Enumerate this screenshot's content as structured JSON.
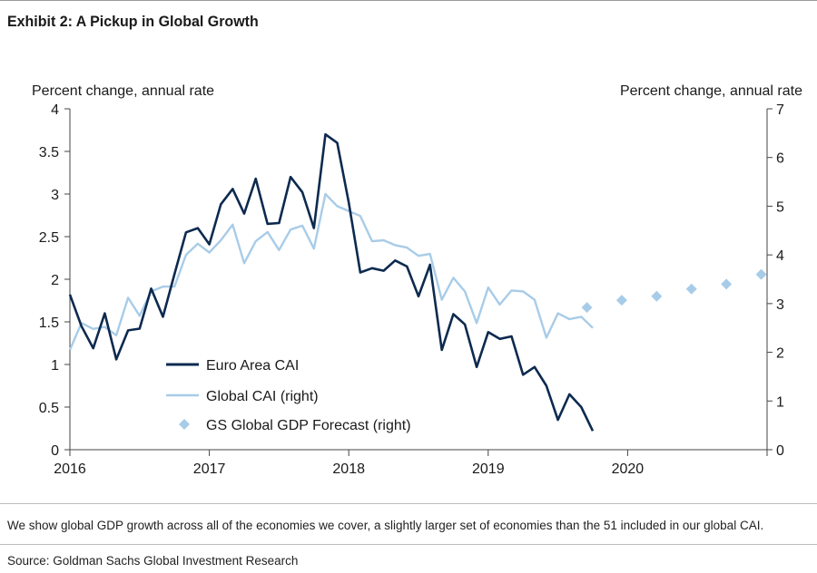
{
  "header": {
    "title": "Exhibit 2: A Pickup in Global Growth"
  },
  "footer": {
    "note": "We show global GDP growth across all of the economies we cover, a slightly larger set of economies than the 51 included in our global CAI.",
    "source": "Source: Goldman Sachs Global Investment Research"
  },
  "chart_data": {
    "type": "line",
    "title": "Exhibit 2: A Pickup in Global Growth",
    "ylabel_left": "Percent change, annual rate",
    "ylabel_right": "Percent change, annual rate",
    "ylim_left": [
      0,
      4
    ],
    "ylim_right": [
      0,
      7
    ],
    "xlim": [
      2016,
      2021
    ],
    "x_ticks": [
      "2016",
      "2017",
      "2018",
      "2019",
      "2020"
    ],
    "y_ticks_left": [
      "0",
      "0.5",
      "1",
      "1.5",
      "2",
      "2.5",
      "3",
      "3.5",
      "4"
    ],
    "y_ticks_right": [
      "0",
      "1",
      "2",
      "3",
      "4",
      "5",
      "6",
      "7"
    ],
    "grid": false,
    "legend_position": "bottom-left",
    "series": [
      {
        "name": "Euro Area CAI",
        "axis": "left",
        "style": "line",
        "color": "#0d2a4f",
        "x": [
          2016.0,
          2016.083,
          2016.167,
          2016.25,
          2016.333,
          2016.417,
          2016.5,
          2016.583,
          2016.667,
          2016.75,
          2016.833,
          2016.917,
          2017.0,
          2017.083,
          2017.167,
          2017.25,
          2017.333,
          2017.417,
          2017.5,
          2017.583,
          2017.667,
          2017.75,
          2017.833,
          2017.917,
          2018.0,
          2018.083,
          2018.167,
          2018.25,
          2018.333,
          2018.417,
          2018.5,
          2018.583,
          2018.667,
          2018.75,
          2018.833,
          2018.917,
          2019.0,
          2019.083,
          2019.167,
          2019.25,
          2019.333,
          2019.417,
          2019.5,
          2019.583,
          2019.667,
          2019.75
        ],
        "values": [
          1.82,
          1.45,
          1.19,
          1.6,
          1.06,
          1.4,
          1.42,
          1.89,
          1.56,
          2.06,
          2.55,
          2.6,
          2.41,
          2.88,
          3.06,
          2.77,
          3.18,
          2.65,
          2.66,
          3.2,
          3.02,
          2.6,
          3.7,
          3.6,
          2.9,
          2.08,
          2.13,
          2.1,
          2.22,
          2.15,
          1.8,
          2.17,
          1.17,
          1.59,
          1.47,
          0.97,
          1.38,
          1.3,
          1.33,
          0.88,
          0.97,
          0.75,
          0.35,
          0.65,
          0.5,
          0.22
        ]
      },
      {
        "name": "Global CAI (right)",
        "axis": "right",
        "style": "line",
        "color": "#a8cce8",
        "x": [
          2016.0,
          2016.083,
          2016.167,
          2016.25,
          2016.333,
          2016.417,
          2016.5,
          2016.583,
          2016.667,
          2016.75,
          2016.833,
          2016.917,
          2017.0,
          2017.083,
          2017.167,
          2017.25,
          2017.333,
          2017.417,
          2017.5,
          2017.583,
          2017.667,
          2017.75,
          2017.833,
          2017.917,
          2018.0,
          2018.083,
          2018.167,
          2018.25,
          2018.333,
          2018.417,
          2018.5,
          2018.583,
          2018.667,
          2018.75,
          2018.833,
          2018.917,
          2019.0,
          2019.083,
          2019.167,
          2019.25,
          2019.333,
          2019.417,
          2019.5,
          2019.583,
          2019.667,
          2019.75
        ],
        "values": [
          2.05,
          2.6,
          2.48,
          2.52,
          2.35,
          3.12,
          2.75,
          3.25,
          3.35,
          3.35,
          4.0,
          4.23,
          4.05,
          4.3,
          4.62,
          3.83,
          4.28,
          4.47,
          4.1,
          4.52,
          4.6,
          4.13,
          5.25,
          5.0,
          4.9,
          4.8,
          4.28,
          4.3,
          4.2,
          4.15,
          3.98,
          4.02,
          3.08,
          3.53,
          3.25,
          2.6,
          3.33,
          2.98,
          3.27,
          3.25,
          3.08,
          2.3,
          2.8,
          2.68,
          2.73,
          2.5
        ]
      },
      {
        "name": "GS Global GDP Forecast (right)",
        "axis": "right",
        "style": "diamond",
        "color": "#a8cce8",
        "x": [
          2019.708,
          2019.958,
          2020.208,
          2020.458,
          2020.708,
          2020.958
        ],
        "values": [
          2.92,
          3.07,
          3.15,
          3.3,
          3.4,
          3.6
        ]
      }
    ]
  }
}
